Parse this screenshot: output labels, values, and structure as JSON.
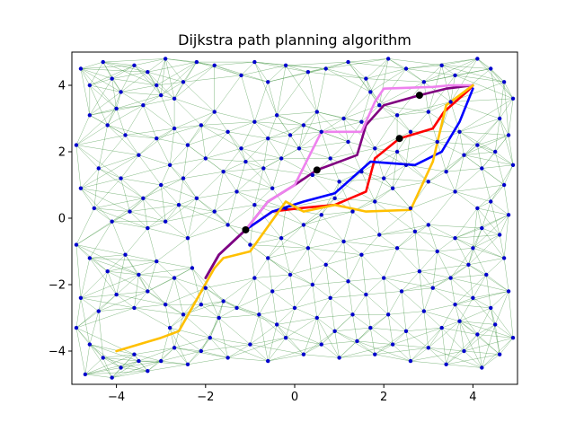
{
  "chart_data": {
    "type": "scatter",
    "title": "Dijkstra path planning algorithm",
    "xlabel": "",
    "ylabel": "",
    "xlim": [
      -5,
      5
    ],
    "ylim": [
      -5,
      5
    ],
    "xticks": [
      -4,
      -2,
      0,
      2,
      4
    ],
    "yticks": [
      -4,
      -2,
      0,
      2,
      4
    ],
    "grid": false,
    "legend": "none",
    "node_color": "#0000cc",
    "edge_color": "#2e8b2e",
    "nodes": [
      [
        -4.8,
        4.5
      ],
      [
        -4.6,
        4.0
      ],
      [
        -4.3,
        4.7
      ],
      [
        -4.1,
        4.2
      ],
      [
        -3.9,
        3.8
      ],
      [
        -3.6,
        4.6
      ],
      [
        -3.3,
        4.4
      ],
      [
        -3.1,
        4.0
      ],
      [
        -2.9,
        4.8
      ],
      [
        -2.7,
        3.6
      ],
      [
        -3.0,
        3.7
      ],
      [
        -3.4,
        3.4
      ],
      [
        -2.5,
        4.1
      ],
      [
        -2.2,
        4.7
      ],
      [
        -1.8,
        4.6
      ],
      [
        -1.2,
        4.3
      ],
      [
        -0.9,
        4.7
      ],
      [
        -0.6,
        4.1
      ],
      [
        -0.2,
        4.6
      ],
      [
        0.3,
        4.4
      ],
      [
        0.7,
        4.5
      ],
      [
        1.2,
        4.7
      ],
      [
        1.6,
        4.2
      ],
      [
        2.1,
        4.8
      ],
      [
        2.5,
        4.5
      ],
      [
        2.9,
        4.1
      ],
      [
        3.3,
        4.6
      ],
      [
        3.6,
        4.3
      ],
      [
        4.1,
        4.8
      ],
      [
        4.4,
        4.5
      ],
      [
        4.7,
        4.1
      ],
      [
        4.9,
        3.6
      ],
      [
        4.6,
        3.0
      ],
      [
        4.8,
        2.5
      ],
      [
        4.5,
        2.0
      ],
      [
        4.9,
        1.6
      ],
      [
        4.7,
        1.0
      ],
      [
        4.4,
        0.5
      ],
      [
        4.8,
        0.1
      ],
      [
        4.2,
        -0.3
      ],
      [
        -4.9,
        2.2
      ],
      [
        -4.6,
        3.1
      ],
      [
        -4.2,
        2.8
      ],
      [
        -3.8,
        2.5
      ],
      [
        -3.5,
        1.9
      ],
      [
        -3.1,
        2.4
      ],
      [
        -2.8,
        1.6
      ],
      [
        -2.4,
        2.2
      ],
      [
        -2.1,
        2.8
      ],
      [
        -1.8,
        3.2
      ],
      [
        -1.5,
        2.6
      ],
      [
        -1.2,
        2.1
      ],
      [
        -0.9,
        2.9
      ],
      [
        -0.6,
        2.4
      ],
      [
        -0.4,
        3.1
      ],
      [
        -0.1,
        2.5
      ],
      [
        0.2,
        2.8
      ],
      [
        0.5,
        3.2
      ],
      [
        0.6,
        2.6
      ],
      [
        0.1,
        2.1
      ],
      [
        -0.3,
        1.8
      ],
      [
        -0.7,
        1.5
      ],
      [
        -1.1,
        1.7
      ],
      [
        -1.6,
        1.4
      ],
      [
        -2.0,
        1.8
      ],
      [
        -2.5,
        1.2
      ],
      [
        -3.0,
        1.0
      ],
      [
        -3.4,
        0.6
      ],
      [
        -3.9,
        1.2
      ],
      [
        -4.4,
        1.5
      ],
      [
        -4.8,
        0.9
      ],
      [
        -4.5,
        0.3
      ],
      [
        -4.1,
        -0.1
      ],
      [
        -3.7,
        0.2
      ],
      [
        -3.3,
        -0.3
      ],
      [
        -2.9,
        -0.1
      ],
      [
        -2.6,
        0.4
      ],
      [
        -2.2,
        0.6
      ],
      [
        -1.8,
        0.2
      ],
      [
        -1.5,
        -0.2
      ],
      [
        -4.9,
        -0.8
      ],
      [
        -4.6,
        -1.2
      ],
      [
        -4.2,
        -1.6
      ],
      [
        -3.8,
        -1.1
      ],
      [
        -3.5,
        -1.7
      ],
      [
        -3.1,
        -1.3
      ],
      [
        -2.7,
        -1.8
      ],
      [
        -2.3,
        -1.5
      ],
      [
        -2.0,
        -2.1
      ],
      [
        -1.6,
        -2.5
      ],
      [
        -4.8,
        -2.4
      ],
      [
        -4.4,
        -2.8
      ],
      [
        -4.0,
        -2.3
      ],
      [
        -3.6,
        -2.7
      ],
      [
        -3.3,
        -2.2
      ],
      [
        -2.9,
        -2.6
      ],
      [
        -2.5,
        -2.9
      ],
      [
        -2.1,
        -2.6
      ],
      [
        -1.7,
        -3.0
      ],
      [
        -1.3,
        -2.7
      ],
      [
        -4.9,
        -3.3
      ],
      [
        -4.6,
        -3.8
      ],
      [
        -4.3,
        -4.2
      ],
      [
        -3.9,
        -4.5
      ],
      [
        -3.6,
        -4.1
      ],
      [
        -3.3,
        -4.6
      ],
      [
        -3.0,
        -4.3
      ],
      [
        -2.7,
        -3.9
      ],
      [
        -2.4,
        -4.4
      ],
      [
        -2.1,
        -4.0
      ],
      [
        -4.7,
        -4.7
      ],
      [
        -4.1,
        -4.8
      ],
      [
        -3.5,
        -4.3
      ],
      [
        -2.8,
        -3.3
      ],
      [
        -1.9,
        -3.6
      ],
      [
        -1.5,
        -4.2
      ],
      [
        -1.0,
        -3.8
      ],
      [
        -0.6,
        -4.3
      ],
      [
        -0.2,
        -3.6
      ],
      [
        0.2,
        -4.1
      ],
      [
        -1.0,
        -0.8
      ],
      [
        -0.6,
        -1.2
      ],
      [
        -0.3,
        -0.6
      ],
      [
        0.3,
        -0.9
      ],
      [
        0.7,
        -1.4
      ],
      [
        1.1,
        -0.7
      ],
      [
        1.5,
        -1.1
      ],
      [
        1.9,
        -0.5
      ],
      [
        2.3,
        -0.9
      ],
      [
        2.7,
        -0.4
      ],
      [
        -0.9,
        -1.8
      ],
      [
        -0.5,
        -2.2
      ],
      [
        -0.1,
        -1.7
      ],
      [
        0.4,
        -2.0
      ],
      [
        0.8,
        -2.4
      ],
      [
        1.2,
        -1.9
      ],
      [
        1.6,
        -2.3
      ],
      [
        2.0,
        -1.8
      ],
      [
        2.4,
        -2.2
      ],
      [
        2.8,
        -1.6
      ],
      [
        -0.8,
        -2.9
      ],
      [
        -0.4,
        -3.2
      ],
      [
        0.0,
        -2.7
      ],
      [
        0.5,
        -3.0
      ],
      [
        0.9,
        -3.4
      ],
      [
        1.3,
        -2.9
      ],
      [
        1.7,
        -3.3
      ],
      [
        2.1,
        -2.9
      ],
      [
        2.5,
        -3.4
      ],
      [
        2.9,
        -2.8
      ],
      [
        0.6,
        -3.8
      ],
      [
        1.0,
        -4.2
      ],
      [
        1.4,
        -3.7
      ],
      [
        1.8,
        -4.1
      ],
      [
        2.2,
        -3.8
      ],
      [
        2.6,
        -4.3
      ],
      [
        3.0,
        -3.9
      ],
      [
        3.4,
        -4.4
      ],
      [
        3.8,
        -4.0
      ],
      [
        4.2,
        -4.5
      ],
      [
        4.6,
        -4.1
      ],
      [
        4.9,
        -3.6
      ],
      [
        4.5,
        -3.2
      ],
      [
        4.1,
        -3.5
      ],
      [
        3.7,
        -3.1
      ],
      [
        3.3,
        -3.3
      ],
      [
        3.6,
        -2.6
      ],
      [
        4.0,
        -2.4
      ],
      [
        4.4,
        -2.7
      ],
      [
        4.8,
        -2.2
      ],
      [
        3.1,
        -2.1
      ],
      [
        3.5,
        -1.8
      ],
      [
        3.9,
        -1.4
      ],
      [
        4.3,
        -1.7
      ],
      [
        4.7,
        -1.2
      ],
      [
        3.2,
        -1.0
      ],
      [
        3.6,
        -0.6
      ],
      [
        4.0,
        -0.9
      ],
      [
        4.6,
        -0.5
      ],
      [
        3.0,
        -0.2
      ],
      [
        0.9,
        0.6
      ],
      [
        1.3,
        0.2
      ],
      [
        1.8,
        0.5
      ],
      [
        2.2,
        0.9
      ],
      [
        2.6,
        0.3
      ],
      [
        1.0,
        1.1
      ],
      [
        1.5,
        1.4
      ],
      [
        2.0,
        1.2
      ],
      [
        2.5,
        1.6
      ],
      [
        3.0,
        1.1
      ],
      [
        3.4,
        1.4
      ],
      [
        3.8,
        1.9
      ],
      [
        4.2,
        1.5
      ],
      [
        3.6,
        0.8
      ],
      [
        4.1,
        0.3
      ],
      [
        3.2,
        2.3
      ],
      [
        3.7,
        2.6
      ],
      [
        4.1,
        2.2
      ],
      [
        3.0,
        3.2
      ],
      [
        3.5,
        3.5
      ],
      [
        1.1,
        3.0
      ],
      [
        1.5,
        2.9
      ],
      [
        1.9,
        3.4
      ],
      [
        2.3,
        3.1
      ],
      [
        2.6,
        2.6
      ],
      [
        1.2,
        2.3
      ],
      [
        1.8,
        2.1
      ],
      [
        2.3,
        2.0
      ],
      [
        0.8,
        1.8
      ],
      [
        0.4,
        1.3
      ],
      [
        -0.5,
        0.9
      ],
      [
        -0.9,
        0.4
      ],
      [
        -1.3,
        0.8
      ],
      [
        -0.2,
        0.3
      ],
      [
        0.2,
        -0.2
      ],
      [
        0.6,
        0.1
      ],
      [
        -2.4,
        -0.6
      ],
      [
        -2.7,
        2.7
      ],
      [
        -4.0,
        3.3
      ],
      [
        1.7,
        3.8
      ]
    ],
    "edges_k_nearest": 8,
    "paths": [
      {
        "color": "#ff0000",
        "points": [
          [
            -2.0,
            -1.8
          ],
          [
            -1.7,
            -1.1
          ],
          [
            -1.1,
            -0.35
          ],
          [
            -0.5,
            0.2
          ],
          [
            0.1,
            0.3
          ],
          [
            0.5,
            0.35
          ],
          [
            0.9,
            0.4
          ],
          [
            1.6,
            0.8
          ],
          [
            1.8,
            1.8
          ],
          [
            2.35,
            2.4
          ],
          [
            3.1,
            2.7
          ],
          [
            3.35,
            3.2
          ],
          [
            3.9,
            3.85
          ],
          [
            4.0,
            4.0
          ]
        ]
      },
      {
        "color": "#0000ff",
        "points": [
          [
            -2.0,
            -1.8
          ],
          [
            -1.7,
            -1.1
          ],
          [
            -1.1,
            -0.35
          ],
          [
            -0.5,
            0.2
          ],
          [
            0.2,
            0.5
          ],
          [
            0.9,
            0.75
          ],
          [
            1.7,
            1.7
          ],
          [
            2.7,
            1.6
          ],
          [
            3.3,
            2.0
          ],
          [
            3.7,
            2.9
          ],
          [
            4.0,
            3.9
          ]
        ]
      },
      {
        "color": "#800080",
        "points": [
          [
            -2.0,
            -1.8
          ],
          [
            -1.7,
            -1.1
          ],
          [
            -1.1,
            -0.35
          ],
          [
            -0.6,
            0.5
          ],
          [
            0.0,
            1.0
          ],
          [
            0.5,
            1.45
          ],
          [
            1.4,
            1.9
          ],
          [
            1.6,
            2.8
          ],
          [
            2.0,
            3.4
          ],
          [
            2.8,
            3.7
          ],
          [
            3.4,
            3.9
          ],
          [
            4.0,
            4.0
          ]
        ]
      },
      {
        "color": "#ee82ee",
        "points": [
          [
            -1.1,
            -0.35
          ],
          [
            -0.6,
            0.5
          ],
          [
            0.0,
            1.0
          ],
          [
            0.6,
            2.6
          ],
          [
            1.5,
            2.6
          ],
          [
            1.8,
            3.5
          ],
          [
            2.0,
            3.9
          ],
          [
            3.1,
            3.95
          ],
          [
            3.5,
            4.0
          ],
          [
            4.0,
            4.0
          ]
        ]
      },
      {
        "color": "#ffc000",
        "points": [
          [
            -4.0,
            -4.0
          ],
          [
            -3.0,
            -3.6
          ],
          [
            -2.6,
            -3.4
          ],
          [
            -1.8,
            -1.5
          ],
          [
            -1.6,
            -1.2
          ],
          [
            -1.0,
            -1.0
          ],
          [
            -0.2,
            0.5
          ],
          [
            0.2,
            0.2
          ],
          [
            0.9,
            0.4
          ],
          [
            1.6,
            0.2
          ],
          [
            2.6,
            0.25
          ],
          [
            3.1,
            1.7
          ],
          [
            3.4,
            3.4
          ],
          [
            3.8,
            3.8
          ],
          [
            4.0,
            4.0
          ]
        ]
      }
    ],
    "markers": {
      "color": "#000000",
      "points": [
        [
          -1.1,
          -0.35
        ],
        [
          0.5,
          1.45
        ],
        [
          2.35,
          2.4
        ],
        [
          2.8,
          3.7
        ]
      ]
    }
  }
}
